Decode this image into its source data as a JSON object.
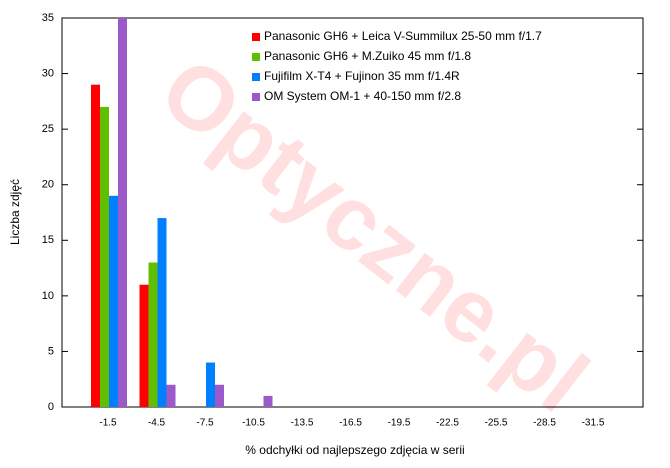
{
  "chart_data": {
    "type": "bar",
    "xlabel": "% odchyłki od najlepszego zdjęcia w serii",
    "ylabel": "Liczba zdjęć",
    "watermark": "Optyczne.pl",
    "categories": [
      "-1.5",
      "-4.5",
      "-7.5",
      "-10.5",
      "-13.5",
      "-16.5",
      "-19.5",
      "-22.5",
      "-25.5",
      "-28.5",
      "-31.5"
    ],
    "series": [
      {
        "name": "Panasonic GH6 + Leica V-Summilux 25-50 mm f/1.7",
        "color": "#ff0000",
        "values": [
          29,
          11,
          0,
          0,
          0,
          0,
          0,
          0,
          0,
          0,
          0
        ]
      },
      {
        "name": "Panasonic GH6 + M.Zuiko 45 mm f/1.8",
        "color": "#5fbf00",
        "values": [
          27,
          13,
          0,
          0,
          0,
          0,
          0,
          0,
          0,
          0,
          0
        ]
      },
      {
        "name": "Fujifilm X-T4 + Fujinon 35 mm f/1.4R",
        "color": "#0080ff",
        "values": [
          19,
          17,
          4,
          0,
          0,
          0,
          0,
          0,
          0,
          0,
          0
        ]
      },
      {
        "name": "OM System OM-1 + 40-150 mm f/2.8",
        "color": "#9b59c9",
        "values": [
          35,
          2,
          2,
          1,
          0,
          0,
          0,
          0,
          0,
          0,
          0
        ]
      }
    ],
    "ylim": [
      0,
      35
    ],
    "yticks": [
      0,
      5,
      10,
      15,
      20,
      25,
      30,
      35
    ],
    "legend": "upper-center"
  }
}
